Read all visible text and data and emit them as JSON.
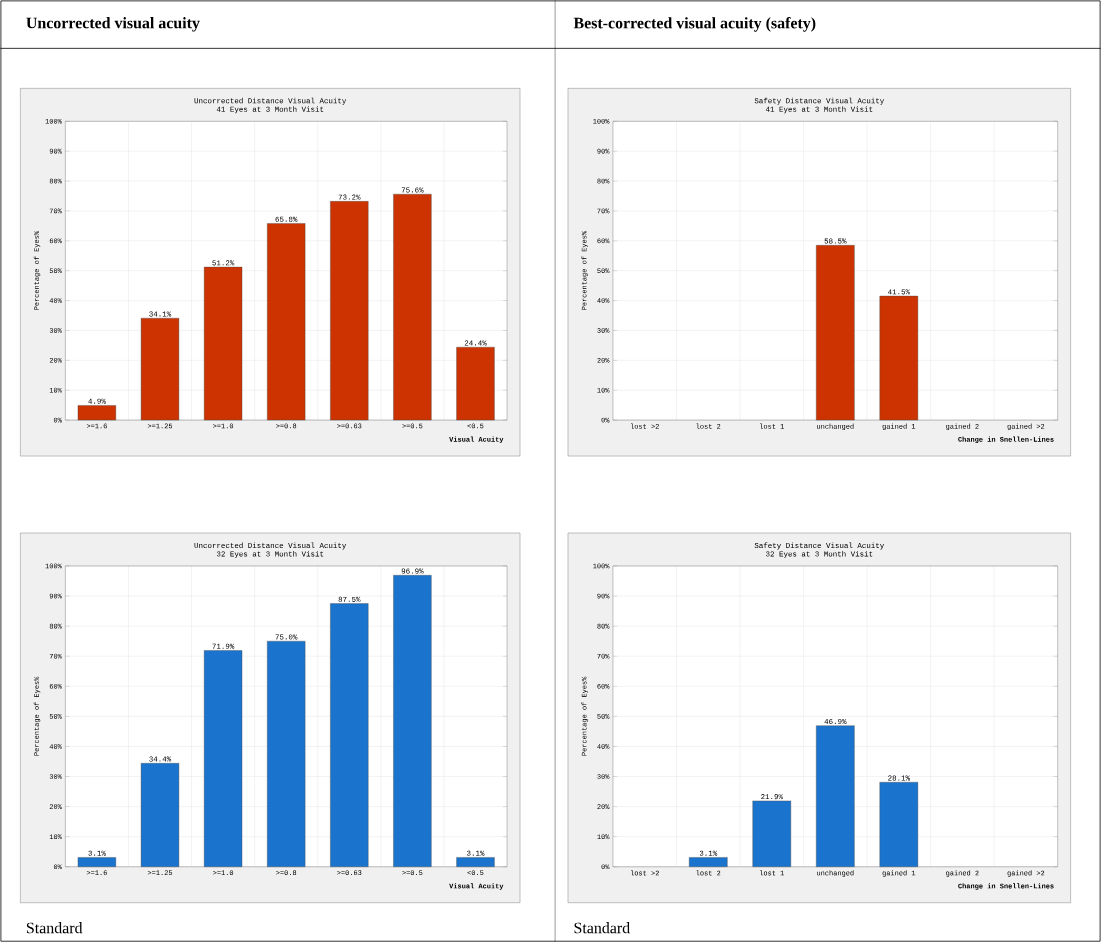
{
  "chart_data": [
    {
      "type": "bar",
      "title": "Uncorrected Distance Visual Acuity",
      "subtitle": "41 Eyes at 3 Month Visit",
      "xlabel": "Visual Acuity",
      "ylabel": "Percentage of Eyes%",
      "annotations": [
        "Uncorrected visual acuity"
      ],
      "categories": [
        ">=1.6",
        ">=1.25",
        ">=1.0",
        ">=0.8",
        ">=0.63",
        ">=0.5",
        "<0.5"
      ],
      "values": [
        4.9,
        34.1,
        51.2,
        65.8,
        73.2,
        75.6,
        24.4
      ],
      "color": "#cc3300",
      "value_labels": [
        "4.9%",
        "34.1%",
        "51.2%",
        "65.8%",
        "73.2%",
        "75.6%",
        "24.4%"
      ],
      "ylim": [
        0,
        100
      ],
      "yticks": [
        {
          "value": 0,
          "label": "0%"
        },
        {
          "value": 10,
          "label": "10%"
        },
        {
          "value": 20,
          "label": "20%"
        },
        {
          "value": 30,
          "label": "30%"
        },
        {
          "value": 40,
          "label": "40%"
        },
        {
          "value": 50,
          "label": "50%"
        },
        {
          "value": 60,
          "label": "60%"
        },
        {
          "value": 70,
          "label": "70%"
        },
        {
          "value": 80,
          "label": "80%"
        },
        {
          "value": 90,
          "label": "90%"
        },
        {
          "value": 100,
          "label": "100%"
        }
      ],
      "grid": true
    },
    {
      "type": "bar",
      "title": "Safety Distance Visual Acuity",
      "subtitle": "41 Eyes at 3 Month Visit",
      "xlabel": "Change in Snellen-Lines",
      "ylabel": "Percentage of Eyes%",
      "annotations": [
        "Best-corrected visual acuity (safety)"
      ],
      "categories": [
        "lost >2",
        "lost 2",
        "lost 1",
        "unchanged",
        "gained 1",
        "gained 2",
        "gained >2"
      ],
      "values": [
        null,
        null,
        null,
        58.5,
        41.5,
        null,
        null
      ],
      "color": "#cc3300",
      "value_labels": [
        null,
        null,
        null,
        "58.5%",
        "41.5%",
        null,
        null
      ],
      "ylim": [
        0,
        100
      ],
      "yticks": [
        {
          "value": 0,
          "label": "0%"
        },
        {
          "value": 10,
          "label": "10%"
        },
        {
          "value": 20,
          "label": "20%"
        },
        {
          "value": 30,
          "label": "30%"
        },
        {
          "value": 40,
          "label": "40%"
        },
        {
          "value": 50,
          "label": "50%"
        },
        {
          "value": 60,
          "label": "60%"
        },
        {
          "value": 70,
          "label": "70%"
        },
        {
          "value": 80,
          "label": "80%"
        },
        {
          "value": 90,
          "label": "90%"
        },
        {
          "value": 100,
          "label": "100%"
        }
      ],
      "grid": true
    },
    {
      "type": "bar",
      "title": "Uncorrected Distance Visual Acuity",
      "subtitle": "32 Eyes at 3 Month Visit",
      "xlabel": "Visual Acuity",
      "ylabel": "Percentage of Eyes%",
      "annotations": [
        "Standard"
      ],
      "categories": [
        ">=1.6",
        ">=1.25",
        ">=1.0",
        ">=0.8",
        ">=0.63",
        ">=0.5",
        "<0.5"
      ],
      "values": [
        3.1,
        34.4,
        71.9,
        75.0,
        87.5,
        96.9,
        3.1
      ],
      "color": "#1a73cc",
      "value_labels": [
        "3.1%",
        "34.4%",
        "71.9%",
        "75.0%",
        "87.5%",
        "96.9%",
        "3.1%"
      ],
      "ylim": [
        0,
        100
      ],
      "yticks": [
        {
          "value": 0,
          "label": "0%"
        },
        {
          "value": 10,
          "label": "10%"
        },
        {
          "value": 20,
          "label": "20%"
        },
        {
          "value": 30,
          "label": "30%"
        },
        {
          "value": 40,
          "label": "40%"
        },
        {
          "value": 50,
          "label": "50%"
        },
        {
          "value": 60,
          "label": "60%"
        },
        {
          "value": 70,
          "label": "70%"
        },
        {
          "value": 80,
          "label": "80%"
        },
        {
          "value": 90,
          "label": "90%"
        },
        {
          "value": 100,
          "label": "100%"
        }
      ],
      "grid": true
    },
    {
      "type": "bar",
      "title": "Safety Distance Visual Acuity",
      "subtitle": "32 Eyes at 3 Month Visit",
      "xlabel": "Change in Snellen-Lines",
      "ylabel": "Percentage of Eyes%",
      "annotations": [
        "Standard"
      ],
      "categories": [
        "lost >2",
        "lost 2",
        "lost 1",
        "unchanged",
        "gained 1",
        "gained 2",
        "gained >2"
      ],
      "values": [
        null,
        3.1,
        21.9,
        46.9,
        28.1,
        null,
        null
      ],
      "color": "#1a73cc",
      "value_labels": [
        null,
        "3.1%",
        "21.9%",
        "46.9%",
        "28.1%",
        null,
        null
      ],
      "ylim": [
        0,
        100
      ],
      "yticks": [
        {
          "value": 0,
          "label": "0%"
        },
        {
          "value": 10,
          "label": "10%"
        },
        {
          "value": 20,
          "label": "20%"
        },
        {
          "value": 30,
          "label": "30%"
        },
        {
          "value": 40,
          "label": "40%"
        },
        {
          "value": 50,
          "label": "50%"
        },
        {
          "value": 60,
          "label": "60%"
        },
        {
          "value": 70,
          "label": "70%"
        },
        {
          "value": 80,
          "label": "80%"
        },
        {
          "value": 90,
          "label": "90%"
        },
        {
          "value": 100,
          "label": "100%"
        }
      ],
      "grid": true
    }
  ]
}
